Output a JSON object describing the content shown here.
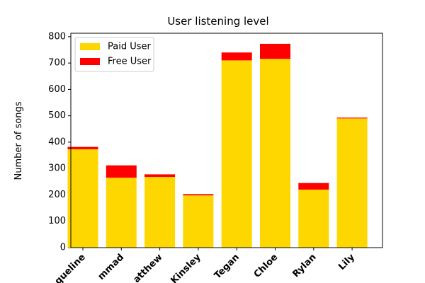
{
  "chart_data": {
    "type": "stacked-bar",
    "title": "User listening level",
    "y_label": "Number of songs",
    "categories": [
      "queline",
      "mmad",
      "atthew",
      "Kinsley",
      "Tegan",
      "Chloe",
      "Rylan",
      "Lily"
    ],
    "series": [
      {
        "name": "Paid User",
        "color": "#ffd700",
        "values": [
          373,
          265,
          268,
          198,
          710,
          716,
          220,
          490
        ]
      },
      {
        "name": "Free User",
        "color": "#ff0000",
        "values": [
          9,
          47,
          10,
          5,
          30,
          57,
          25,
          3
        ]
      }
    ],
    "ylim": [
      0,
      813
    ],
    "yticks": [
      0,
      100,
      200,
      300,
      400,
      500,
      600,
      700,
      800
    ],
    "legend": "upper left"
  }
}
